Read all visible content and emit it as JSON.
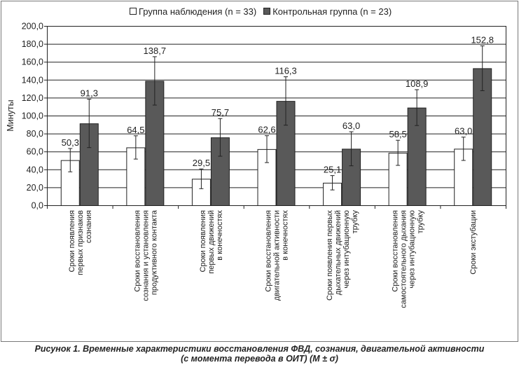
{
  "legend": {
    "items": [
      {
        "label": "Группа наблюдения (n = 33)",
        "color": "#ffffff"
      },
      {
        "label": "Контрольная группа (n = 23)",
        "color": "#595959"
      }
    ]
  },
  "caption": {
    "line1": "Рисунок 1. Временные характеристики восстановления ФВД, сознания, двигательной активности",
    "line2": "(с момента перевода в ОИТ) (M ± σ)"
  },
  "chart_data": {
    "type": "bar",
    "ylabel": "Минуты",
    "ylim": [
      0,
      200
    ],
    "ytick_step": 20,
    "ytick_labels": [
      "0,0",
      "20,0",
      "40,0",
      "60,0",
      "80,0",
      "100,0",
      "120,0",
      "140,0",
      "160,0",
      "180,0",
      "200,0"
    ],
    "grid": "horizontal",
    "legend_position": "top",
    "categories": [
      [
        "Сроки появления",
        "первых признаков",
        "сознания"
      ],
      [
        "Сроки восстановления",
        "сознания и установления",
        "продуктивного контакта"
      ],
      [
        "Сроки появления",
        "первых движений",
        "в конечностях"
      ],
      [
        "Сроки восстановления",
        "двигательной активности",
        "в конечностях"
      ],
      [
        "Сроки появления первых",
        "дыхательных движений",
        "через интубационную",
        "трубку"
      ],
      [
        "Сроки восстановления",
        "самостоятельного дыхания",
        "через интубационную",
        "трубку"
      ],
      [
        "Сроки экстубации"
      ]
    ],
    "series": [
      {
        "name": "Группа наблюдения (n = 33)",
        "color": "#ffffff",
        "values": [
          50.3,
          64.5,
          29.5,
          62.6,
          25.1,
          58.5,
          63.0
        ],
        "labels": [
          "50,3",
          "64,5",
          "29,5",
          "62,6",
          "25,1",
          "58,5",
          "63,0"
        ],
        "error": [
          13,
          13,
          11,
          15,
          8,
          14,
          13
        ]
      },
      {
        "name": "Контрольная группа (n = 23)",
        "color": "#595959",
        "values": [
          91.3,
          138.7,
          75.7,
          116.3,
          63.0,
          108.9,
          152.8
        ],
        "labels": [
          "91,3",
          "138,7",
          "75,7",
          "116,3",
          "63,0",
          "108,9",
          "152,8"
        ],
        "error": [
          27,
          27,
          21,
          27,
          19,
          20,
          25
        ]
      }
    ]
  }
}
